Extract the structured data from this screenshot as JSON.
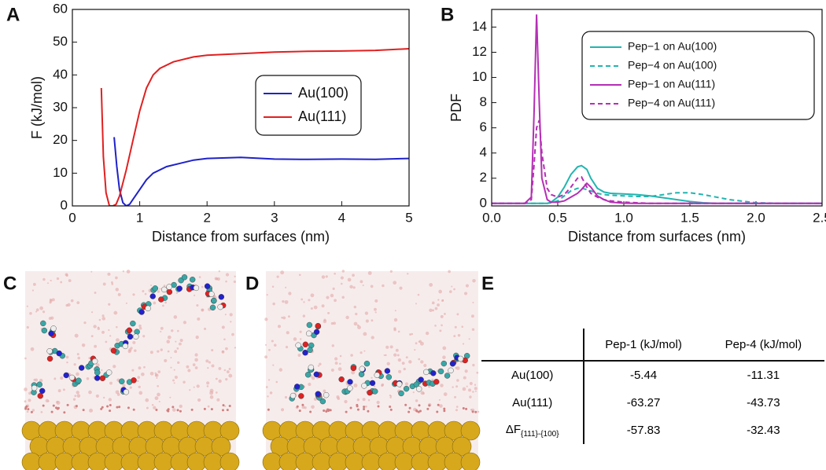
{
  "panel_labels": [
    "A",
    "B",
    "C",
    "D",
    "E"
  ],
  "chart_data": [
    {
      "type": "line",
      "xlabel": "Distance from surfaces (nm)",
      "ylabel": "F (kJ/mol)",
      "xlim": [
        0,
        5
      ],
      "xticks": [
        0,
        1,
        2,
        3,
        4,
        5
      ],
      "ylim": [
        0,
        60
      ],
      "yticks": [
        0,
        10,
        20,
        30,
        40,
        50,
        60
      ],
      "legend": "right",
      "series": [
        {
          "name": "Au(100)",
          "color": "#1f22c8",
          "dash": false,
          "x": [
            0.62,
            0.66,
            0.7,
            0.75,
            0.8,
            0.85,
            0.9,
            1.0,
            1.1,
            1.2,
            1.4,
            1.6,
            1.8,
            2.0,
            2.5,
            3,
            3.5,
            4,
            4.5,
            5
          ],
          "values": [
            21,
            12,
            5,
            1,
            0,
            0.5,
            2,
            5,
            8,
            10,
            12,
            13,
            14,
            14.5,
            14.8,
            14.3,
            14.2,
            14.3,
            14.2,
            14.5
          ]
        },
        {
          "name": "Au(111)",
          "color": "#e02020",
          "dash": false,
          "x": [
            0.43,
            0.46,
            0.5,
            0.55,
            0.6,
            0.65,
            0.7,
            0.8,
            0.9,
            1.0,
            1.1,
            1.2,
            1.3,
            1.5,
            1.8,
            2.0,
            2.5,
            3,
            3.5,
            4,
            4.5,
            5
          ],
          "values": [
            36,
            15,
            4,
            0,
            0,
            0.5,
            3,
            11,
            20,
            29,
            36,
            40,
            42,
            44,
            45.5,
            46,
            46.5,
            47,
            47.2,
            47.3,
            47.5,
            48
          ]
        }
      ]
    },
    {
      "type": "line",
      "xlabel": "Distance from surfaces (nm)",
      "ylabel": "PDF",
      "xlim": [
        0,
        2.5
      ],
      "xticks": [
        {
          "value": 0,
          "label": "0.0"
        },
        0.5,
        {
          "value": 1,
          "label": "1.0"
        },
        1.5,
        {
          "value": 2,
          "label": "2.0"
        },
        2.5
      ],
      "ylim": [
        -0.2,
        15.4
      ],
      "yticks": [
        0,
        2,
        4,
        6,
        8,
        10,
        12,
        14
      ],
      "legend": "upper right",
      "x": [
        0,
        0.25,
        0.3,
        0.32,
        0.34,
        0.36,
        0.38,
        0.42,
        0.45,
        0.5,
        0.55,
        0.6,
        0.65,
        0.68,
        0.72,
        0.75,
        0.8,
        0.85,
        0.9,
        1.0,
        1.1,
        1.2,
        1.3,
        1.4,
        1.5,
        1.6,
        1.7,
        1.8,
        2.0,
        2.2,
        2.5
      ],
      "series": [
        {
          "name": "Pep−1 on Au(100)",
          "color": "#22b5b0",
          "dash": false,
          "values": [
            0,
            0,
            0,
            0,
            0,
            0,
            0,
            0,
            0.1,
            0.5,
            1.3,
            2.3,
            2.9,
            3.0,
            2.7,
            2.0,
            1.2,
            0.9,
            0.8,
            0.75,
            0.7,
            0.6,
            0.45,
            0.3,
            0.15,
            0.05,
            0,
            0,
            0,
            0,
            0
          ]
        },
        {
          "name": "Pep−4 on Au(100)",
          "color": "#22b5b0",
          "dash": true,
          "values": [
            0,
            0,
            0,
            0,
            0,
            0,
            0,
            0,
            0.05,
            0.2,
            0.6,
            1.0,
            1.2,
            1.2,
            1.1,
            1.0,
            0.8,
            0.7,
            0.65,
            0.6,
            0.55,
            0.55,
            0.7,
            0.85,
            0.85,
            0.7,
            0.5,
            0.3,
            0.05,
            0,
            0
          ]
        },
        {
          "name": "Pep−1 on Au(111)",
          "color": "#b52fb5",
          "dash": false,
          "values": [
            0,
            0,
            0.5,
            7,
            15,
            8,
            2,
            0.3,
            0.1,
            0.1,
            0.2,
            0.5,
            0.8,
            1.1,
            1.6,
            1.3,
            0.6,
            0.3,
            0.1,
            0.02,
            0,
            0,
            0,
            0,
            0,
            0,
            0,
            0,
            0,
            0,
            0
          ]
        },
        {
          "name": "Pep−4 on Au(111)",
          "color": "#b52fb5",
          "dash": true,
          "values": [
            0,
            0,
            0.3,
            3,
            6,
            6.6,
            4,
            1.2,
            0.7,
            0.5,
            0.7,
            1.3,
            2.0,
            2.1,
            1.3,
            0.8,
            0.5,
            0.3,
            0.2,
            0.1,
            0.05,
            0,
            0,
            0,
            0,
            0,
            0,
            0,
            0,
            0,
            0
          ]
        }
      ]
    }
  ],
  "table": {
    "columns": [
      "Pep-1 (kJ/mol)",
      "Pep-4 (kJ/mol)"
    ],
    "rows": [
      {
        "label": "Au(100)",
        "values": [
          -5.44,
          -11.31
        ]
      },
      {
        "label": "Au(111)",
        "values": [
          -63.27,
          -43.73
        ]
      },
      {
        "label": "ΔF",
        "subscript": "{111}-{100}",
        "values": [
          -57.83,
          -32.43
        ]
      }
    ]
  }
}
